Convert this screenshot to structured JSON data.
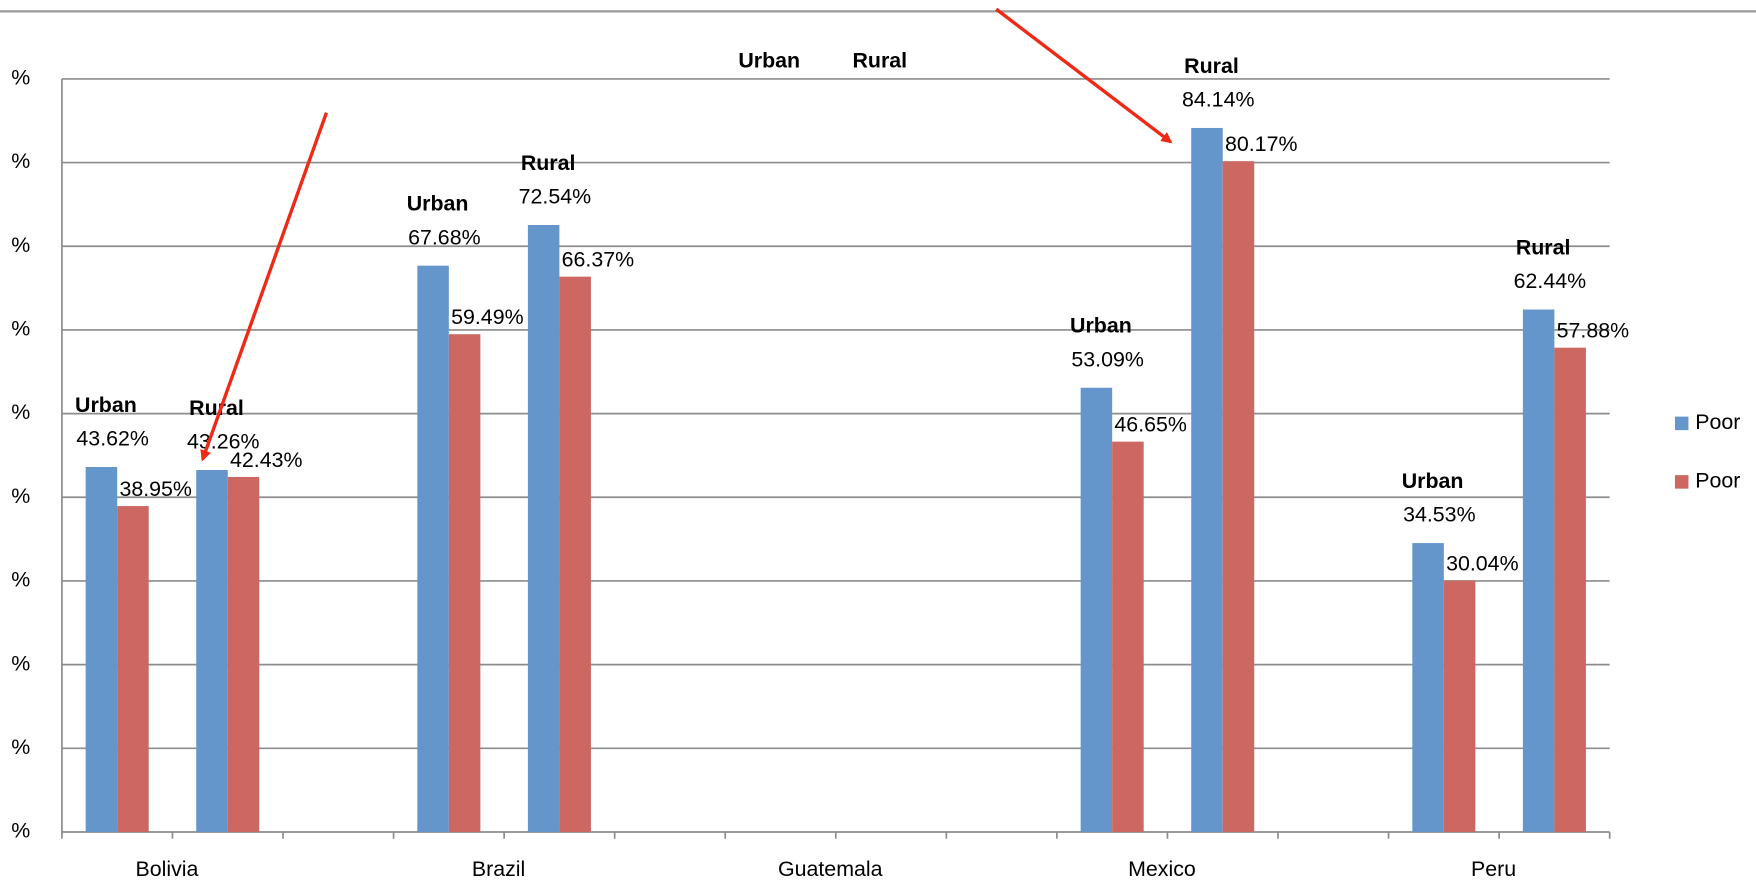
{
  "chart_data": {
    "type": "bar",
    "categories": [
      "Bolivia",
      null,
      null,
      "Brazil",
      null,
      null,
      "Guatemala",
      null,
      null,
      "Mexico",
      null,
      null,
      "Peru",
      null
    ],
    "group_labels": [
      "Urban",
      "Rural",
      null,
      "Urban",
      "Rural",
      null,
      "Urban",
      "Rural",
      null,
      "Urban",
      "Rural",
      null,
      "Urban",
      "Rural"
    ],
    "series": [
      {
        "name": "Poor",
        "color": "#6596cb",
        "values": [
          43.62,
          43.26,
          null,
          67.68,
          72.54,
          null,
          null,
          null,
          null,
          53.09,
          84.14,
          null,
          34.53,
          62.44
        ],
        "value_labels": [
          "43.62%",
          "43.26%",
          null,
          "67.68%",
          "72.54%",
          null,
          null,
          null,
          null,
          "53.09%",
          "84.14%",
          null,
          "34.53%",
          "62.44%"
        ]
      },
      {
        "name": "Poor",
        "color": "#cc6762",
        "values": [
          38.95,
          42.43,
          null,
          59.49,
          66.37,
          null,
          null,
          null,
          null,
          46.65,
          80.17,
          null,
          30.04,
          57.88
        ],
        "value_labels": [
          "38.95%",
          "42.43%",
          null,
          "59.49%",
          "66.37%",
          null,
          null,
          null,
          null,
          "46.65%",
          "80.17%",
          null,
          "30.04%",
          "57.88%"
        ]
      }
    ],
    "ylim": [
      0,
      90
    ],
    "yticks": [
      {
        "value": 0,
        "label": "%"
      },
      {
        "value": 10,
        "label": "%"
      },
      {
        "value": 20,
        "label": "%"
      },
      {
        "value": 30,
        "label": "%"
      },
      {
        "value": 40,
        "label": "%"
      },
      {
        "value": 50,
        "label": "%"
      },
      {
        "value": 60,
        "label": "%"
      },
      {
        "value": 70,
        "label": "%"
      },
      {
        "value": 80,
        "label": "%"
      },
      {
        "value": 90,
        "label": "%"
      }
    ],
    "grid": true
  }
}
